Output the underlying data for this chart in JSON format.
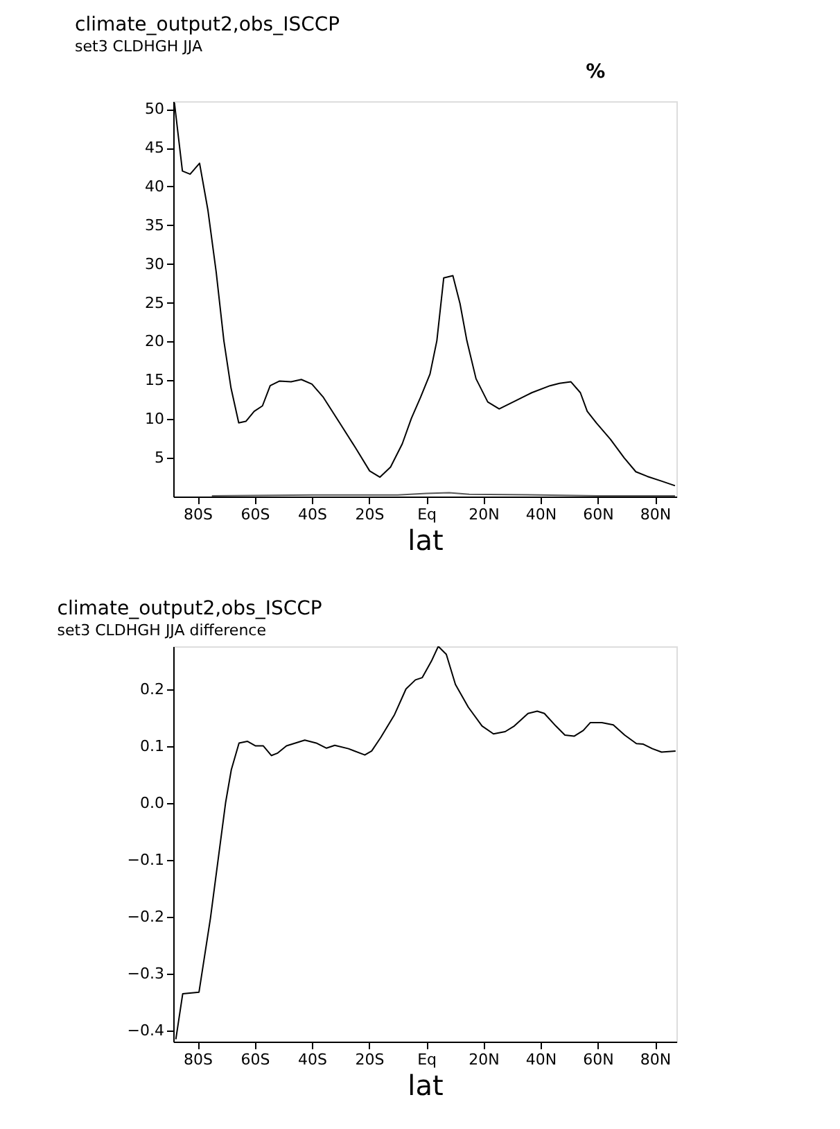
{
  "chart_data": [
    {
      "type": "line",
      "title": "climate_output2,obs_ISCCP",
      "subtitle": "set3 CLDHGH JJA",
      "xlabel": "lat",
      "annotations": [
        "%"
      ],
      "grid": false,
      "xlim": [
        -88.5,
        87.5
      ],
      "ylim": [
        0,
        51
      ],
      "xticks": [
        {
          "value": -80,
          "label": "80S"
        },
        {
          "value": -60,
          "label": "60S"
        },
        {
          "value": -40,
          "label": "40S"
        },
        {
          "value": -20,
          "label": "20S"
        },
        {
          "value": 0,
          "label": "Eq"
        },
        {
          "value": 20,
          "label": "20N"
        },
        {
          "value": 40,
          "label": "40N"
        },
        {
          "value": 60,
          "label": "60N"
        },
        {
          "value": 80,
          "label": "80N"
        }
      ],
      "yticks": [
        5,
        10,
        15,
        20,
        25,
        30,
        35,
        40,
        45,
        50
      ],
      "series": [
        {
          "color": "#000000",
          "x": [
            -88.1,
            -85.3,
            -82.6,
            -79.3,
            -76.4,
            -73.5,
            -70.8,
            -68.3,
            -65.6,
            -63.1,
            -60.2,
            -57.3,
            -54.6,
            -51.3,
            -47.3,
            -43.7,
            -40,
            -36,
            -30.3,
            -24.6,
            -19.8,
            -16.2,
            -12.5,
            -8.4,
            -5.2,
            -2,
            1.3,
            3.7,
            6.1,
            9.3,
            11.8,
            14.2,
            17.4,
            21.5,
            25.5,
            30.4,
            36.9,
            43.3,
            46.6,
            50.6,
            53.9,
            56.3,
            59.5,
            64.4,
            69.2,
            73.3,
            77.3,
            82.2,
            87
          ],
          "values": [
            50.8,
            42,
            41.6,
            43,
            37,
            29,
            20.1,
            14,
            9.5,
            9.7,
            11,
            11.7,
            14.3,
            14.9,
            14.8,
            15.1,
            14.5,
            12.8,
            9.5,
            6.2,
            3.3,
            2.5,
            3.8,
            6.8,
            10.1,
            12.8,
            15.8,
            20.1,
            28.2,
            28.5,
            24.9,
            20.1,
            15.2,
            12.2,
            11.3,
            12.2,
            13.4,
            14.3,
            14.6,
            14.8,
            13.4,
            11,
            9.5,
            7.4,
            5,
            3.2,
            2.6,
            2,
            1.4
          ]
        },
        {
          "color": "#555555",
          "x": [
            -75,
            -40,
            -10,
            0,
            8,
            15,
            40,
            60,
            87
          ],
          "values": [
            0.1,
            0.2,
            0.2,
            0.4,
            0.5,
            0.3,
            0.2,
            0.1,
            0.1
          ]
        }
      ]
    },
    {
      "type": "line",
      "title": "climate_output2,obs_ISCCP",
      "subtitle": "set3 CLDHGH JJA difference",
      "xlabel": "lat",
      "grid": false,
      "xlim": [
        -88.5,
        87.5
      ],
      "ylim": [
        -0.42,
        0.275
      ],
      "xticks": [
        {
          "value": -80,
          "label": "80S"
        },
        {
          "value": -60,
          "label": "60S"
        },
        {
          "value": -40,
          "label": "40S"
        },
        {
          "value": -20,
          "label": "20S"
        },
        {
          "value": 0,
          "label": "Eq"
        },
        {
          "value": 20,
          "label": "20N"
        },
        {
          "value": 40,
          "label": "40N"
        },
        {
          "value": 60,
          "label": "60N"
        },
        {
          "value": 80,
          "label": "80N"
        }
      ],
      "yticks": [
        -0.4,
        -0.3,
        -0.2,
        -0.1,
        {
          "value": 0,
          "label": "0.0"
        },
        0.1,
        0.2
      ],
      "series": [
        {
          "color": "#000000",
          "x": [
            -87.6,
            -85.2,
            -79.5,
            -75.5,
            -70.2,
            -68.2,
            -65.5,
            -62.6,
            -59.7,
            -57,
            -54.2,
            -52.1,
            -48.9,
            -42.5,
            -38.5,
            -34.9,
            -32,
            -27.2,
            -21.5,
            -19.1,
            -15.9,
            -11.1,
            -7.1,
            -3.8,
            -1.4,
            1.8,
            4.2,
            7,
            10.2,
            14.7,
            19.5,
            23.5,
            27.6,
            30.8,
            35.6,
            38.8,
            41.3,
            45.3,
            48.5,
            51.7,
            54.9,
            57.4,
            61.4,
            65.4,
            69.4,
            73.5,
            75.9,
            79.1,
            82.3,
            87.2
          ],
          "values": [
            -0.416,
            -0.336,
            -0.333,
            -0.203,
            0.0,
            0.058,
            0.105,
            0.108,
            0.1,
            0.1,
            0.083,
            0.087,
            0.1,
            0.11,
            0.105,
            0.096,
            0.101,
            0.095,
            0.084,
            0.091,
            0.115,
            0.155,
            0.2,
            0.216,
            0.22,
            0.249,
            0.275,
            0.261,
            0.208,
            0.168,
            0.135,
            0.121,
            0.125,
            0.135,
            0.157,
            0.161,
            0.157,
            0.135,
            0.119,
            0.117,
            0.127,
            0.141,
            0.141,
            0.137,
            0.119,
            0.104,
            0.103,
            0.095,
            0.089,
            0.091
          ]
        }
      ]
    }
  ]
}
